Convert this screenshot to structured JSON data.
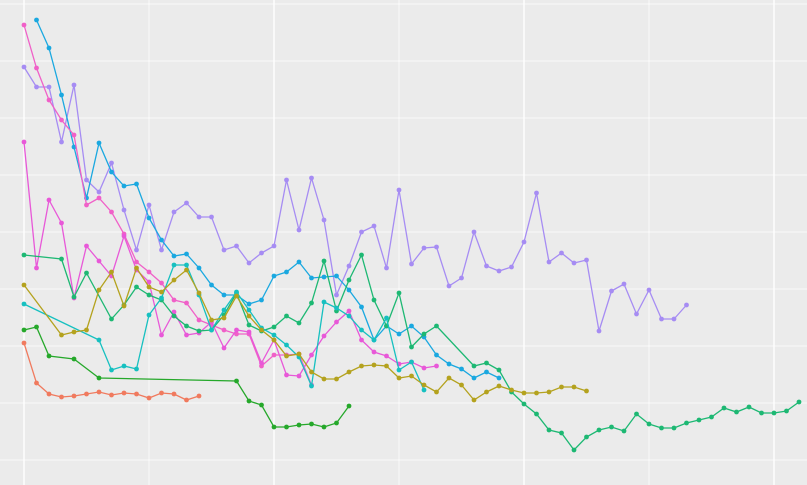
{
  "chart_data": {
    "type": "line",
    "grid": true,
    "tick_labels": false,
    "xlim": [
      -1.92,
      62.64
    ],
    "xticks": [
      0,
      10,
      20,
      30,
      40,
      50,
      60
    ],
    "ylim": [
      -25,
      460
    ],
    "yticks": [
      0,
      57,
      114,
      171,
      228,
      285,
      342,
      399,
      456
    ],
    "series": [
      {
        "color": "#a68cf3",
        "x": [
          0,
          1,
          2,
          3,
          4,
          5,
          6,
          7,
          8,
          9,
          10,
          11,
          12,
          13,
          14,
          15,
          16,
          17,
          18,
          19,
          20,
          21,
          22,
          23,
          24,
          25,
          26,
          27,
          28,
          29,
          30,
          31,
          32,
          33,
          34,
          35,
          36,
          37,
          38,
          39,
          40,
          41,
          42,
          43,
          44,
          45,
          46,
          47,
          48,
          49,
          50,
          51,
          52,
          53
        ],
        "values": [
          393,
          373,
          373,
          318,
          375,
          280,
          268,
          297,
          250,
          210,
          255,
          210,
          248,
          257,
          243,
          243,
          210,
          214,
          197,
          207,
          214,
          280,
          230,
          282,
          240,
          165,
          194,
          228,
          234,
          192,
          270,
          196,
          212,
          213,
          174,
          182,
          228,
          194,
          189,
          193,
          218,
          267,
          198,
          207,
          197,
          200,
          129,
          169,
          176,
          146,
          170,
          141,
          141,
          155
        ]
      },
      {
        "color": "#1aa8e0",
        "x": [
          1,
          2,
          3,
          4,
          5,
          6,
          7,
          8,
          9,
          10,
          11,
          12,
          13,
          14,
          15,
          16,
          17,
          18,
          19,
          20,
          21,
          22,
          23,
          24,
          25,
          26,
          27,
          28,
          29,
          30,
          31,
          32,
          33,
          34,
          35,
          36,
          37,
          38
        ],
        "values": [
          440,
          412,
          365,
          313,
          262,
          317,
          288,
          274,
          276,
          242,
          220,
          204,
          206,
          192,
          175,
          165,
          165,
          156,
          160,
          184,
          188,
          198,
          182,
          183,
          184,
          170,
          153,
          120,
          134,
          126,
          134,
          123,
          105,
          96,
          91,
          82,
          88,
          82
        ]
      },
      {
        "color": "#f060c8",
        "x": [
          0,
          1,
          2,
          3,
          4,
          5,
          6,
          7,
          8,
          9,
          10,
          11,
          12,
          13,
          14,
          15,
          16,
          17,
          18,
          19,
          20,
          21,
          22,
          23
        ],
        "values": [
          435,
          392,
          360,
          340,
          325,
          255,
          262,
          248,
          226,
          198,
          188,
          177,
          160,
          157,
          140,
          135,
          130,
          126,
          126,
          94,
          105,
          105,
          106,
          75
        ]
      },
      {
        "color": "#e858d8",
        "x": [
          0,
          1,
          2,
          3,
          4,
          5,
          6,
          7,
          8,
          9,
          10,
          11,
          12,
          13,
          14,
          15,
          16,
          17,
          18,
          19,
          20,
          21,
          22,
          23,
          24,
          25,
          26,
          27,
          28,
          29,
          30,
          31,
          32,
          33
        ],
        "values": [
          318,
          192,
          260,
          237,
          162,
          214,
          199,
          184,
          224,
          190,
          178,
          125,
          148,
          125,
          127,
          138,
          112,
          130,
          128,
          97,
          120,
          85,
          84,
          105,
          124,
          138,
          149,
          120,
          108,
          104,
          96,
          98,
          92,
          94
        ]
      },
      {
        "color": "#1db873",
        "x": [
          0,
          3,
          4,
          5,
          7,
          8,
          9,
          10,
          11,
          12,
          13,
          14,
          15,
          16,
          17,
          18,
          19,
          20,
          21,
          22,
          23,
          24,
          25,
          26,
          27,
          28,
          29,
          30,
          31,
          32,
          33,
          36,
          37,
          38,
          39,
          40,
          41,
          42,
          43,
          44,
          45,
          46,
          47,
          48,
          49,
          50,
          51,
          52,
          53,
          54,
          55,
          56,
          57,
          58,
          59,
          60,
          61,
          62
        ],
        "values": [
          205,
          201,
          163,
          187,
          141,
          155,
          173,
          165,
          160,
          144,
          134,
          129,
          130,
          145,
          167,
          135,
          129,
          133,
          144,
          137,
          157,
          199,
          149,
          180,
          205,
          160,
          134,
          167,
          113,
          126,
          134,
          94,
          97,
          90,
          68,
          56,
          46,
          30,
          27,
          10,
          23,
          30,
          33,
          29,
          46,
          36,
          32,
          32,
          37,
          40,
          43,
          52,
          48,
          53,
          47,
          47,
          49,
          58
        ]
      },
      {
        "color": "#16c0c0",
        "x": [
          0,
          6,
          7,
          8,
          9,
          10,
          11,
          12,
          13,
          14,
          15,
          16,
          17,
          18,
          19,
          20,
          21,
          22,
          23,
          24,
          25,
          26,
          27,
          28,
          29,
          30,
          31,
          32
        ],
        "values": [
          156,
          120,
          90,
          94,
          91,
          145,
          162,
          195,
          195,
          165,
          130,
          150,
          168,
          150,
          132,
          125,
          115,
          103,
          74,
          158,
          152,
          144,
          130,
          120,
          142,
          90,
          98,
          70
        ]
      },
      {
        "color": "#b4a21e",
        "x": [
          0,
          3,
          4,
          5,
          6,
          7,
          8,
          9,
          10,
          11,
          12,
          13,
          14,
          15,
          16,
          17,
          18,
          19,
          20,
          21,
          22,
          23,
          24,
          25,
          26,
          27,
          28,
          29,
          30,
          31,
          32,
          33,
          34,
          35,
          36,
          37,
          38,
          39,
          40,
          41,
          42,
          43,
          44,
          45
        ],
        "values": [
          175,
          125,
          128,
          130,
          170,
          188,
          154,
          192,
          173,
          168,
          180,
          190,
          167,
          140,
          142,
          164,
          144,
          130,
          120,
          104,
          106,
          88,
          81,
          81,
          88,
          94,
          95,
          94,
          82,
          84,
          75,
          68,
          82,
          75,
          60,
          68,
          74,
          70,
          67,
          67,
          68,
          73,
          73,
          69
        ]
      },
      {
        "color": "#25a82a",
        "x": [
          0,
          1,
          2,
          4,
          6,
          17,
          18,
          19,
          20,
          21,
          22,
          23,
          24,
          25,
          26
        ],
        "values": [
          130,
          133,
          104,
          101,
          82,
          79,
          59,
          55,
          33,
          33,
          35,
          36,
          33,
          37,
          54
        ]
      },
      {
        "color": "#f07a5e",
        "x": [
          0,
          1,
          2,
          3,
          4,
          5,
          6,
          7,
          8,
          9,
          10,
          11,
          12,
          13,
          14
        ],
        "values": [
          117,
          77,
          66,
          63,
          64,
          66,
          68,
          65,
          67,
          66,
          62,
          67,
          66,
          60,
          64
        ]
      }
    ]
  }
}
